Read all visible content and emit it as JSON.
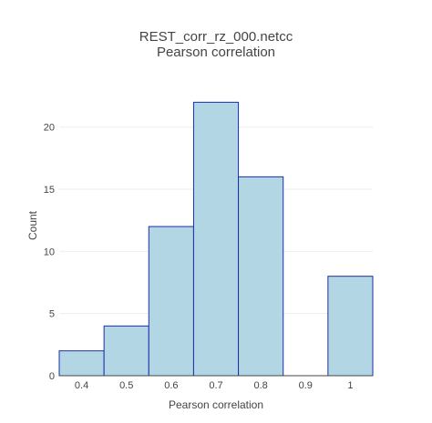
{
  "chart_data": {
    "type": "bar",
    "subtype": "histogram",
    "title": "REST_corr_rz_000.netcc",
    "subtitle": "Pearson correlation",
    "xlabel": "Pearson correlation",
    "ylabel": "Count",
    "bins": [
      {
        "start": 0.35,
        "end": 0.45,
        "count": 2
      },
      {
        "start": 0.45,
        "end": 0.55,
        "count": 4
      },
      {
        "start": 0.55,
        "end": 0.65,
        "count": 12
      },
      {
        "start": 0.65,
        "end": 0.75,
        "count": 22
      },
      {
        "start": 0.75,
        "end": 0.85,
        "count": 16
      },
      {
        "start": 0.85,
        "end": 0.95,
        "count": 0
      },
      {
        "start": 0.95,
        "end": 1.05,
        "count": 8
      }
    ],
    "xlim": [
      0.35,
      1.05
    ],
    "ylim": [
      0,
      23.2
    ],
    "x_ticks": [
      0.4,
      0.5,
      0.6,
      0.7,
      0.8,
      0.9,
      1
    ],
    "x_tick_labels": [
      "0.4",
      "0.5",
      "0.6",
      "0.7",
      "0.8",
      "0.9",
      "1"
    ],
    "y_ticks": [
      0,
      5,
      10,
      15,
      20
    ],
    "y_tick_labels": [
      "0",
      "5",
      "10",
      "15",
      "20"
    ],
    "grid": "y-only",
    "legend": "none",
    "colors": {
      "bar_fill": "#b3d6e4",
      "bar_stroke": "#1a2fa8",
      "grid": "#eeeeee",
      "text": "#444444"
    }
  }
}
